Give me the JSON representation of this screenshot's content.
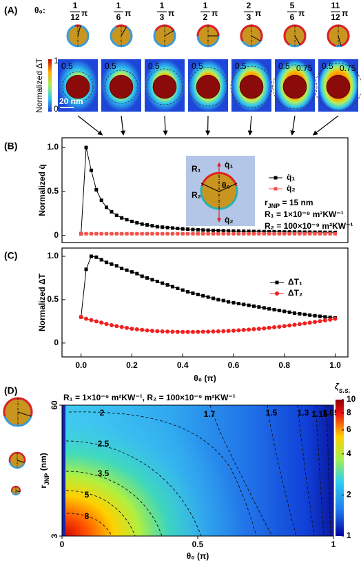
{
  "panel_labels": [
    "(A)",
    "(B)",
    "(C)",
    "(D)"
  ],
  "panel_a": {
    "theta_label": "θ₀:",
    "pi": "π",
    "fractions": [
      {
        "num": "1",
        "den": "12"
      },
      {
        "num": "1",
        "den": "6"
      },
      {
        "num": "1",
        "den": "3"
      },
      {
        "num": "1",
        "den": "2"
      },
      {
        "num": "2",
        "den": "3"
      },
      {
        "num": "5",
        "den": "6"
      },
      {
        "num": "11",
        "den": "12"
      }
    ],
    "colorbar_label": "Normalized ΔT",
    "colorbar_ticks": [
      1,
      0
    ],
    "scale_bar": "20 nm",
    "contour_labels": [
      [
        0.5
      ],
      [
        0.5
      ],
      [
        0.5
      ],
      [
        0.5
      ],
      [
        0.5
      ],
      [
        0.5,
        0.75
      ],
      [
        0.5,
        0.75
      ]
    ]
  },
  "chart_data": [
    {
      "type": "line",
      "ylabel": "Normalized q̇",
      "x": [
        0,
        0.02,
        0.04,
        0.06,
        0.08,
        0.1,
        0.12,
        0.14,
        0.16,
        0.18,
        0.2,
        0.22,
        0.24,
        0.26,
        0.28,
        0.3,
        0.32,
        0.34,
        0.36,
        0.38,
        0.4,
        0.42,
        0.44,
        0.46,
        0.48,
        0.5,
        0.52,
        0.54,
        0.56,
        0.58,
        0.6,
        0.62,
        0.64,
        0.66,
        0.68,
        0.7,
        0.72,
        0.74,
        0.76,
        0.78,
        0.8,
        0.82,
        0.84,
        0.86,
        0.88,
        0.9,
        0.92,
        0.94,
        0.96,
        0.98,
        1
      ],
      "series": [
        {
          "name": "q̇₁",
          "color": "#000000",
          "marker": "square",
          "values": [
            0.02,
            1.0,
            0.74,
            0.52,
            0.4,
            0.32,
            0.27,
            0.23,
            0.2,
            0.18,
            0.16,
            0.145,
            0.13,
            0.12,
            0.11,
            0.1,
            0.095,
            0.09,
            0.085,
            0.08,
            0.075,
            0.072,
            0.068,
            0.065,
            0.062,
            0.06,
            0.058,
            0.056,
            0.054,
            0.052,
            0.05,
            0.049,
            0.048,
            0.047,
            0.046,
            0.045,
            0.044,
            0.043,
            0.042,
            0.041,
            0.04,
            0.04,
            0.039,
            0.039,
            0.038,
            0.038,
            0.037,
            0.037,
            0.036,
            0.036,
            0.035
          ]
        },
        {
          "name": "q̇₂",
          "color": "#f0504a",
          "marker": "square",
          "values": [
            0.02,
            0.02,
            0.02,
            0.02,
            0.02,
            0.02,
            0.02,
            0.02,
            0.02,
            0.02,
            0.02,
            0.02,
            0.02,
            0.02,
            0.02,
            0.02,
            0.02,
            0.02,
            0.02,
            0.02,
            0.02,
            0.02,
            0.02,
            0.02,
            0.02,
            0.02,
            0.02,
            0.02,
            0.02,
            0.02,
            0.02,
            0.02,
            0.02,
            0.02,
            0.02,
            0.02,
            0.02,
            0.02,
            0.02,
            0.02,
            0.02,
            0.02,
            0.02,
            0.02,
            0.02,
            0.02,
            0.02,
            0.02,
            0.02,
            0.02,
            0.02
          ]
        }
      ],
      "xlim": [
        -0.075,
        1.05
      ],
      "ylim": [
        -0.08,
        1.11
      ],
      "yticks": [
        0,
        0.5,
        {
          "value": 1,
          "label": "1.0"
        }
      ],
      "inset": {
        "q1": "q̇₁",
        "q2": "q̇₂",
        "R1": "R₁",
        "R2": "R₂",
        "theta": "θ₀"
      },
      "annotations": [
        {
          "main": "r",
          "sub": "JNP",
          "rest": " = 15 nm"
        },
        "R₁ = 1×10⁻⁹ m²KW⁻¹",
        "R₂ = 100×10⁻⁹ m²KW⁻¹"
      ]
    },
    {
      "type": "line",
      "ylabel": "Normalized ΔT",
      "xlabel": "θ₀ (π)",
      "x": [
        0,
        0.02,
        0.04,
        0.06,
        0.08,
        0.1,
        0.12,
        0.14,
        0.16,
        0.18,
        0.2,
        0.22,
        0.24,
        0.26,
        0.28,
        0.3,
        0.32,
        0.34,
        0.36,
        0.38,
        0.4,
        0.42,
        0.44,
        0.46,
        0.48,
        0.5,
        0.52,
        0.54,
        0.56,
        0.58,
        0.6,
        0.62,
        0.64,
        0.66,
        0.68,
        0.7,
        0.72,
        0.74,
        0.76,
        0.78,
        0.8,
        0.82,
        0.84,
        0.86,
        0.88,
        0.9,
        0.92,
        0.94,
        0.96,
        0.98,
        1
      ],
      "series": [
        {
          "name": "ΔT₁",
          "color": "#000000",
          "marker": "square",
          "values": [
            0.3,
            0.85,
            1.0,
            0.99,
            0.96,
            0.93,
            0.91,
            0.89,
            0.86,
            0.84,
            0.82,
            0.8,
            0.77,
            0.75,
            0.73,
            0.71,
            0.69,
            0.67,
            0.65,
            0.63,
            0.61,
            0.59,
            0.575,
            0.56,
            0.545,
            0.53,
            0.515,
            0.5,
            0.49,
            0.475,
            0.465,
            0.455,
            0.445,
            0.435,
            0.425,
            0.415,
            0.405,
            0.395,
            0.385,
            0.375,
            0.365,
            0.355,
            0.345,
            0.337,
            0.33,
            0.322,
            0.315,
            0.308,
            0.302,
            0.296,
            0.29
          ]
        },
        {
          "name": "ΔT₂",
          "color": "#f02020",
          "marker": "circle",
          "values": [
            0.3,
            0.28,
            0.265,
            0.25,
            0.235,
            0.22,
            0.205,
            0.195,
            0.185,
            0.175,
            0.165,
            0.158,
            0.152,
            0.146,
            0.141,
            0.137,
            0.134,
            0.132,
            0.13,
            0.129,
            0.128,
            0.128,
            0.128,
            0.129,
            0.13,
            0.131,
            0.133,
            0.135,
            0.137,
            0.14,
            0.143,
            0.147,
            0.151,
            0.155,
            0.16,
            0.165,
            0.17,
            0.176,
            0.182,
            0.188,
            0.195,
            0.202,
            0.21,
            0.218,
            0.226,
            0.234,
            0.243,
            0.252,
            0.261,
            0.27,
            0.28
          ]
        }
      ],
      "xlim": [
        -0.075,
        1.05
      ],
      "ylim": [
        -0.16,
        1.095
      ],
      "xticks": [
        {
          "value": 0,
          "label": "0.0"
        },
        0.2,
        0.4,
        0.6,
        0.8,
        {
          "value": 1,
          "label": "1.0"
        }
      ],
      "yticks": [
        0,
        0.5,
        {
          "value": 1,
          "label": "1.0"
        }
      ]
    },
    {
      "type": "contour",
      "title": "R₁ = 1×10⁻⁹ m²KW⁻¹, R₂ = 100×10⁻⁹ m²KW⁻¹",
      "xlabel": "θ₀ (π)",
      "ylabel": {
        "main": "r",
        "sub": "JNP",
        "rest": " (nm)"
      },
      "xlim": [
        0,
        1
      ],
      "xticks": [
        0,
        0.5,
        1
      ],
      "ylim": [
        3,
        60
      ],
      "yticks": [
        3,
        60
      ],
      "contour_levels": [
        8,
        5,
        3.5,
        2.5,
        2,
        1.7,
        1.5,
        1.3,
        1.15,
        1.05
      ],
      "colorbar": {
        "label": "ζ",
        "label_sub": "s.s.",
        "lim": [
          1,
          10
        ],
        "ticks": [
          1,
          2,
          4,
          6,
          8,
          10
        ],
        "log": true
      }
    }
  ]
}
